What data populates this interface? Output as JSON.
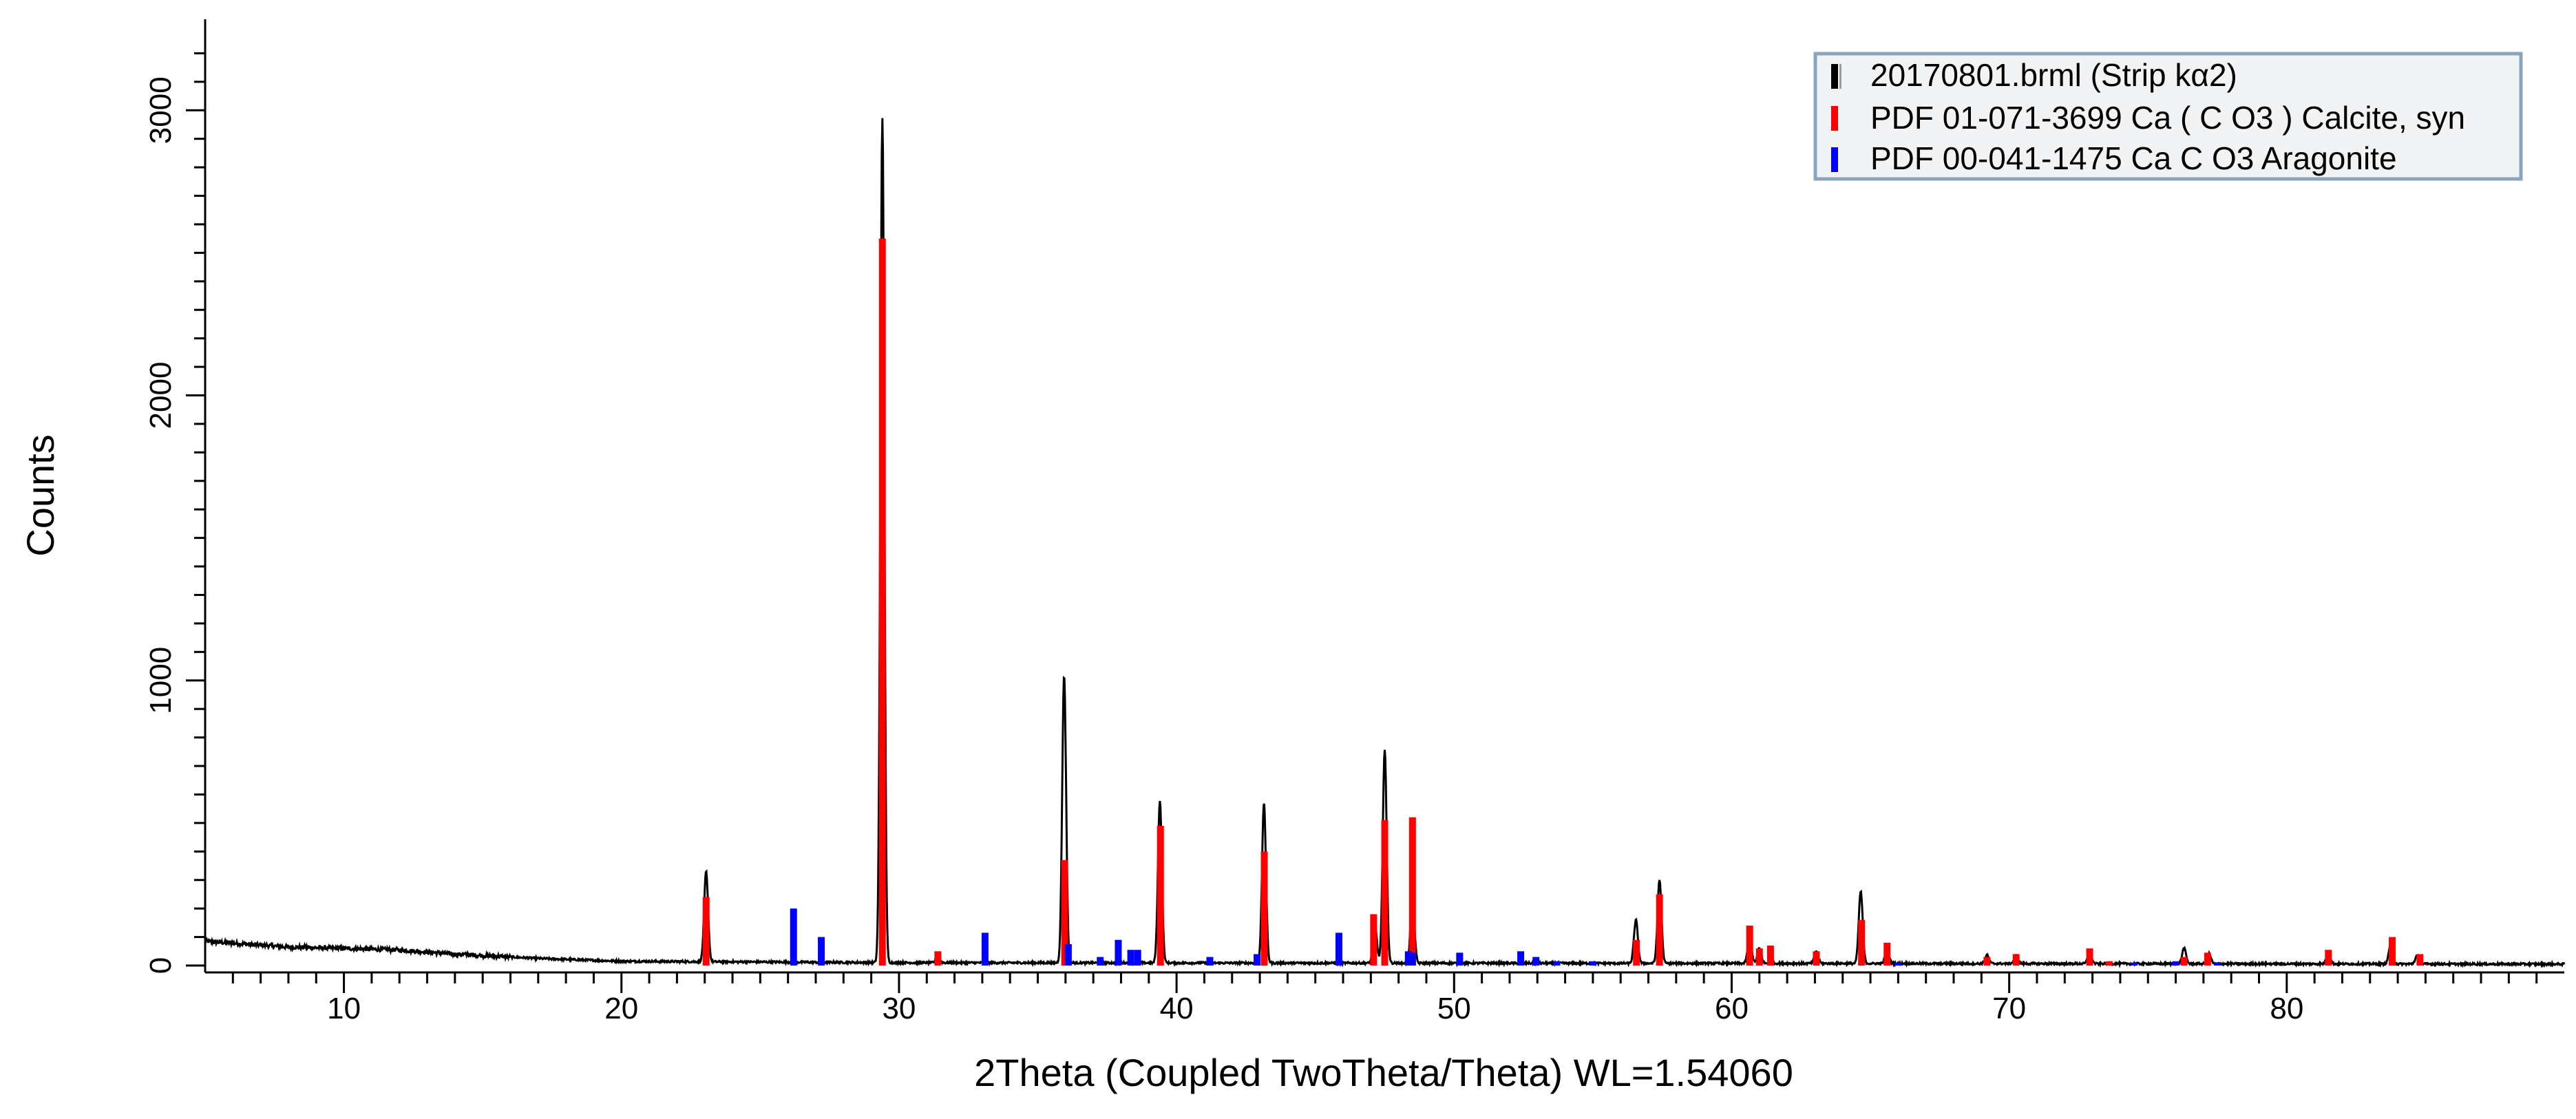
{
  "chart_data": {
    "type": "line",
    "title": "",
    "xlabel": "2Theta (Coupled TwoTheta/Theta) WL=1.54060",
    "ylabel": "Counts",
    "xlim": [
      5,
      90
    ],
    "ylim": [
      0,
      3300
    ],
    "x_ticks": [
      10,
      20,
      30,
      40,
      50,
      60,
      70,
      80
    ],
    "y_ticks": [
      0,
      1000,
      2000,
      3000
    ],
    "legend_position": "top-right",
    "grid": false,
    "series": [
      {
        "name": "20170801.brml (Strip kα2)",
        "type": "line",
        "color": "#000000",
        "peaks": [
          {
            "x": 23.05,
            "y": 330
          },
          {
            "x": 29.4,
            "y": 2970
          },
          {
            "x": 31.4,
            "y": 30
          },
          {
            "x": 35.95,
            "y": 1020
          },
          {
            "x": 39.4,
            "y": 580
          },
          {
            "x": 43.15,
            "y": 570
          },
          {
            "x": 47.15,
            "y": 140
          },
          {
            "x": 47.5,
            "y": 760
          },
          {
            "x": 48.5,
            "y": 240
          },
          {
            "x": 56.55,
            "y": 160
          },
          {
            "x": 57.4,
            "y": 300
          },
          {
            "x": 60.65,
            "y": 100
          },
          {
            "x": 61.0,
            "y": 60
          },
          {
            "x": 63.05,
            "y": 50
          },
          {
            "x": 64.65,
            "y": 260
          },
          {
            "x": 65.6,
            "y": 55
          },
          {
            "x": 69.2,
            "y": 35
          },
          {
            "x": 70.25,
            "y": 35
          },
          {
            "x": 72.9,
            "y": 45
          },
          {
            "x": 76.3,
            "y": 60
          },
          {
            "x": 77.2,
            "y": 40
          },
          {
            "x": 81.5,
            "y": 40
          },
          {
            "x": 83.75,
            "y": 80
          },
          {
            "x": 84.7,
            "y": 35
          }
        ],
        "background": [
          {
            "x": 5,
            "y": 85
          },
          {
            "x": 8,
            "y": 65
          },
          {
            "x": 12,
            "y": 55
          },
          {
            "x": 14,
            "y": 40
          },
          {
            "x": 17,
            "y": 25
          },
          {
            "x": 20,
            "y": 15
          },
          {
            "x": 30,
            "y": 10
          },
          {
            "x": 90,
            "y": 5
          }
        ]
      },
      {
        "name": "PDF 01-071-3699 Ca ( C O3 ) Calcite, syn",
        "type": "stick",
        "color": "#ff0000",
        "sticks": [
          {
            "x": 23.05,
            "y": 240
          },
          {
            "x": 29.4,
            "y": 2550
          },
          {
            "x": 31.4,
            "y": 50
          },
          {
            "x": 35.97,
            "y": 370
          },
          {
            "x": 39.42,
            "y": 490
          },
          {
            "x": 43.16,
            "y": 400
          },
          {
            "x": 47.1,
            "y": 180
          },
          {
            "x": 47.5,
            "y": 510
          },
          {
            "x": 48.5,
            "y": 520
          },
          {
            "x": 56.57,
            "y": 90
          },
          {
            "x": 57.4,
            "y": 250
          },
          {
            "x": 60.65,
            "y": 140
          },
          {
            "x": 61.0,
            "y": 60
          },
          {
            "x": 61.4,
            "y": 70
          },
          {
            "x": 63.05,
            "y": 50
          },
          {
            "x": 64.68,
            "y": 160
          },
          {
            "x": 65.6,
            "y": 80
          },
          {
            "x": 69.2,
            "y": 30
          },
          {
            "x": 70.25,
            "y": 40
          },
          {
            "x": 72.9,
            "y": 60
          },
          {
            "x": 73.6,
            "y": 15
          },
          {
            "x": 76.3,
            "y": 30
          },
          {
            "x": 77.15,
            "y": 45
          },
          {
            "x": 81.5,
            "y": 55
          },
          {
            "x": 83.8,
            "y": 100
          },
          {
            "x": 84.8,
            "y": 40
          }
        ]
      },
      {
        "name": "PDF 00-041-1475 Ca C O3 Aragonite",
        "type": "stick",
        "color": "#0000ff",
        "sticks": [
          {
            "x": 26.2,
            "y": 200
          },
          {
            "x": 27.2,
            "y": 100
          },
          {
            "x": 33.1,
            "y": 115
          },
          {
            "x": 36.1,
            "y": 75
          },
          {
            "x": 37.25,
            "y": 30
          },
          {
            "x": 37.9,
            "y": 90
          },
          {
            "x": 38.35,
            "y": 55
          },
          {
            "x": 38.6,
            "y": 55
          },
          {
            "x": 41.2,
            "y": 30
          },
          {
            "x": 42.9,
            "y": 40
          },
          {
            "x": 45.85,
            "y": 115
          },
          {
            "x": 48.35,
            "y": 50
          },
          {
            "x": 48.5,
            "y": 45
          },
          {
            "x": 50.2,
            "y": 45
          },
          {
            "x": 52.4,
            "y": 50
          },
          {
            "x": 52.95,
            "y": 30
          },
          {
            "x": 53.7,
            "y": 15
          },
          {
            "x": 55.0,
            "y": 15
          },
          {
            "x": 66.0,
            "y": 10
          },
          {
            "x": 74.5,
            "y": 10
          },
          {
            "x": 76.0,
            "y": 15
          },
          {
            "x": 77.5,
            "y": 10
          }
        ]
      }
    ]
  }
}
